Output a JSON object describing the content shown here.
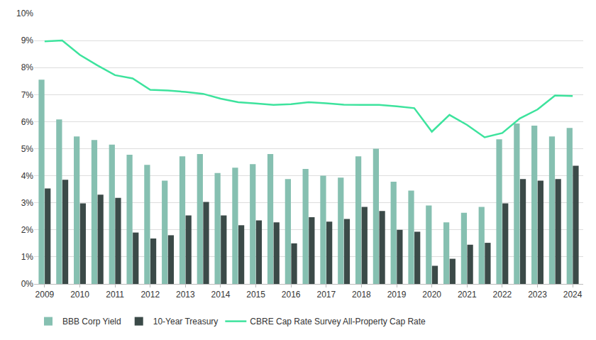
{
  "chart_data": {
    "type": "bar",
    "categories": [
      "2009",
      null,
      "2010",
      null,
      "2011",
      null,
      "2012",
      null,
      "2013",
      null,
      "2014",
      null,
      "2015",
      null,
      "2016",
      null,
      "2017",
      null,
      "2018",
      null,
      "2019",
      null,
      "2020",
      null,
      "2021",
      null,
      "2022",
      null,
      "2023",
      null,
      "2024"
    ],
    "series": [
      {
        "name": "BBB Corp Yield",
        "type": "bar",
        "color": "#86c0b1",
        "values": [
          7.55,
          6.08,
          5.45,
          5.32,
          5.15,
          4.78,
          4.4,
          3.82,
          4.72,
          4.8,
          4.1,
          4.3,
          4.43,
          4.8,
          3.88,
          4.25,
          4.0,
          3.93,
          4.72,
          5.0,
          3.78,
          3.45,
          2.9,
          2.28,
          2.63,
          2.85,
          5.35,
          5.93,
          5.85,
          5.45,
          5.77
        ]
      },
      {
        "name": "10-Year Treasury",
        "type": "bar",
        "color": "#3b4a48",
        "values": [
          3.53,
          3.85,
          2.98,
          3.3,
          3.18,
          1.9,
          1.68,
          1.8,
          2.53,
          3.03,
          2.53,
          2.17,
          2.35,
          2.28,
          1.5,
          2.47,
          2.3,
          2.4,
          2.85,
          2.7,
          2.0,
          1.93,
          0.67,
          0.93,
          1.45,
          1.52,
          2.98,
          3.88,
          3.82,
          3.88,
          4.37
        ]
      },
      {
        "name": "CBRE Cap Rate Survey All-Property Cap Rate",
        "type": "line",
        "color": "#3de39d",
        "line_style": "solid",
        "values": [
          8.97,
          9.0,
          8.47,
          8.08,
          7.72,
          7.6,
          7.18,
          7.15,
          7.1,
          7.03,
          6.85,
          6.72,
          6.67,
          6.62,
          6.65,
          6.72,
          6.68,
          6.63,
          6.62,
          6.62,
          6.57,
          6.5,
          5.63,
          6.25,
          5.88,
          5.42,
          5.58,
          6.12,
          6.45,
          6.97,
          6.95
        ]
      }
    ],
    "ylim": [
      0,
      10
    ],
    "yticks": [
      {
        "value": 0,
        "label": "0%"
      },
      {
        "value": 1,
        "label": "1%"
      },
      {
        "value": 2,
        "label": "2%"
      },
      {
        "value": 3,
        "label": "3%"
      },
      {
        "value": 4,
        "label": "4%"
      },
      {
        "value": 5,
        "label": "5%"
      },
      {
        "value": 6,
        "label": "6%"
      },
      {
        "value": 7,
        "label": "7%"
      },
      {
        "value": 8,
        "label": "8%"
      },
      {
        "value": 9,
        "label": "9%"
      },
      {
        "value": 10,
        "label": "10%"
      }
    ],
    "grid": true,
    "legend": "bottom"
  }
}
